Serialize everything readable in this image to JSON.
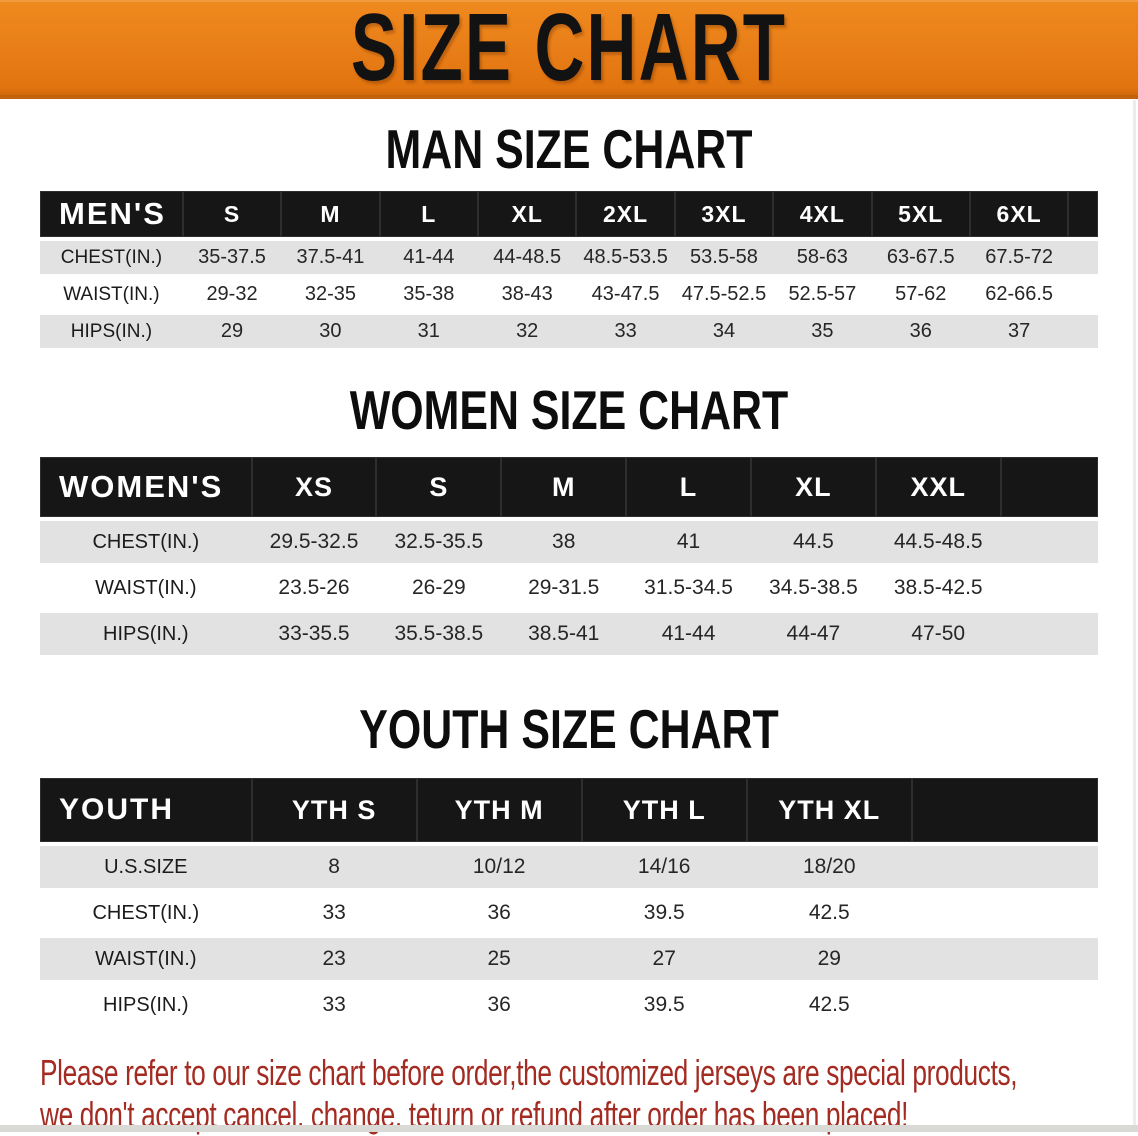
{
  "banner": {
    "title": "SIZE CHART"
  },
  "colors": {
    "banner_orange": "#E87D17",
    "header_black": "#161616",
    "row_gray": "#E2E2E2",
    "disclaimer_red": "#A42B22"
  },
  "sections": [
    {
      "heading": "MAN SIZE CHART",
      "table": {
        "corner_label": "MEN'S",
        "columns": [
          "S",
          "M",
          "L",
          "XL",
          "2XL",
          "3XL",
          "4XL",
          "5XL",
          "6XL"
        ],
        "rows": [
          {
            "label": "CHEST(IN.)",
            "values": [
              "35-37.5",
              "37.5-41",
              "41-44",
              "44-48.5",
              "48.5-53.5",
              "53.5-58",
              "58-63",
              "63-67.5",
              "67.5-72"
            ]
          },
          {
            "label": "WAIST(IN.)",
            "values": [
              "29-32",
              "32-35",
              "35-38",
              "38-43",
              "43-47.5",
              "47.5-52.5",
              "52.5-57",
              "57-62",
              "62-66.5"
            ]
          },
          {
            "label": "HIPS(IN.)",
            "values": [
              "29",
              "30",
              "31",
              "32",
              "33",
              "34",
              "35",
              "36",
              "37"
            ]
          }
        ]
      }
    },
    {
      "heading": "WOMEN SIZE CHART",
      "table": {
        "corner_label": "WOMEN'S",
        "columns": [
          "XS",
          "S",
          "M",
          "L",
          "XL",
          "XXL"
        ],
        "rows": [
          {
            "label": "CHEST(IN.)",
            "values": [
              "29.5-32.5",
              "32.5-35.5",
              "38",
              "41",
              "44.5",
              "44.5-48.5"
            ]
          },
          {
            "label": "WAIST(IN.)",
            "values": [
              "23.5-26",
              "26-29",
              "29-31.5",
              "31.5-34.5",
              "34.5-38.5",
              "38.5-42.5"
            ]
          },
          {
            "label": "HIPS(IN.)",
            "values": [
              "33-35.5",
              "35.5-38.5",
              "38.5-41",
              "41-44",
              "44-47",
              "47-50"
            ]
          }
        ]
      }
    },
    {
      "heading": "YOUTH SIZE CHART",
      "table": {
        "corner_label": "YOUTH",
        "columns": [
          "YTH S",
          "YTH M",
          "YTH L",
          "YTH XL"
        ],
        "rows": [
          {
            "label": "U.S.SIZE",
            "values": [
              "8",
              "10/12",
              "14/16",
              "18/20"
            ]
          },
          {
            "label": "CHEST(IN.)",
            "values": [
              "33",
              "36",
              "39.5",
              "42.5"
            ]
          },
          {
            "label": "WAIST(IN.)",
            "values": [
              "23",
              "25",
              "27",
              "29"
            ]
          },
          {
            "label": "HIPS(IN.)",
            "values": [
              "33",
              "36",
              "39.5",
              "42.5"
            ]
          }
        ]
      }
    }
  ],
  "disclaimer": {
    "lines": [
      "Please refer to our size chart before order,the customized jerseys are special products,",
      "we don't accept cancel, change, teturn or refund after order has been placed!"
    ]
  }
}
